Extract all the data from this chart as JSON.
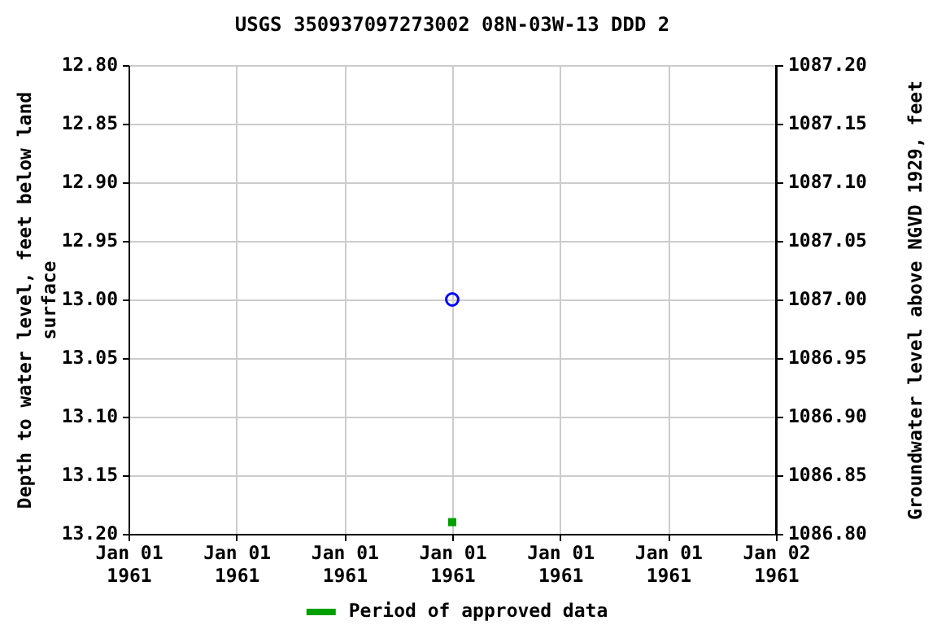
{
  "chart_data": {
    "type": "scatter",
    "title": "USGS 350937097273002 08N-03W-13 DDD 2",
    "ylabel": "Depth to water level, feet below land surface",
    "y2label": "Groundwater level above NGVD 1929, feet",
    "x": [
      "1961-01-01T12:00"
    ],
    "series": [
      {
        "color": "#0000ff",
        "marker": "circle",
        "values": [
          13.0
        ]
      },
      {
        "name": "Period of approved data",
        "color": "#00a000",
        "marker": "square",
        "values": [
          13.19
        ]
      }
    ],
    "xlim": [
      "1961-01-01T00:00",
      "1961-01-02T00:00"
    ],
    "xticks": [
      {
        "value": "1961-01-01T00:00",
        "label": "Jan 01 1961"
      },
      {
        "value": "1961-01-01T04:00",
        "label": "Jan 01 1961"
      },
      {
        "value": "1961-01-01T08:00",
        "label": "Jan 01 1961"
      },
      {
        "value": "1961-01-01T12:00",
        "label": "Jan 01 1961"
      },
      {
        "value": "1961-01-01T16:00",
        "label": "Jan 01 1961"
      },
      {
        "value": "1961-01-01T20:00",
        "label": "Jan 01 1961"
      },
      {
        "value": "1961-01-02T00:00",
        "label": "Jan 02 1961"
      }
    ],
    "ylim": [
      13.2,
      12.8
    ],
    "yticks": [
      {
        "value": 12.8,
        "label": "12.80"
      },
      {
        "value": 12.85,
        "label": "12.85"
      },
      {
        "value": 12.9,
        "label": "12.90"
      },
      {
        "value": 12.95,
        "label": "12.95"
      },
      {
        "value": 13.0,
        "label": "13.00"
      },
      {
        "value": 13.05,
        "label": "13.05"
      },
      {
        "value": 13.1,
        "label": "13.10"
      },
      {
        "value": 13.15,
        "label": "13.15"
      },
      {
        "value": 13.2,
        "label": "13.20"
      }
    ],
    "y2lim": [
      1086.8,
      1087.2
    ],
    "y2ticks": [
      {
        "value": 1086.8,
        "label": "1086.80"
      },
      {
        "value": 1086.85,
        "label": "1086.85"
      },
      {
        "value": 1086.9,
        "label": "1086.90"
      },
      {
        "value": 1086.95,
        "label": "1086.95"
      },
      {
        "value": 1087.0,
        "label": "1087.00"
      },
      {
        "value": 1087.05,
        "label": "1087.05"
      },
      {
        "value": 1087.1,
        "label": "1087.10"
      },
      {
        "value": 1087.15,
        "label": "1087.15"
      },
      {
        "value": 1087.2,
        "label": "1087.20"
      }
    ],
    "grid": true,
    "legend": "bottom"
  }
}
